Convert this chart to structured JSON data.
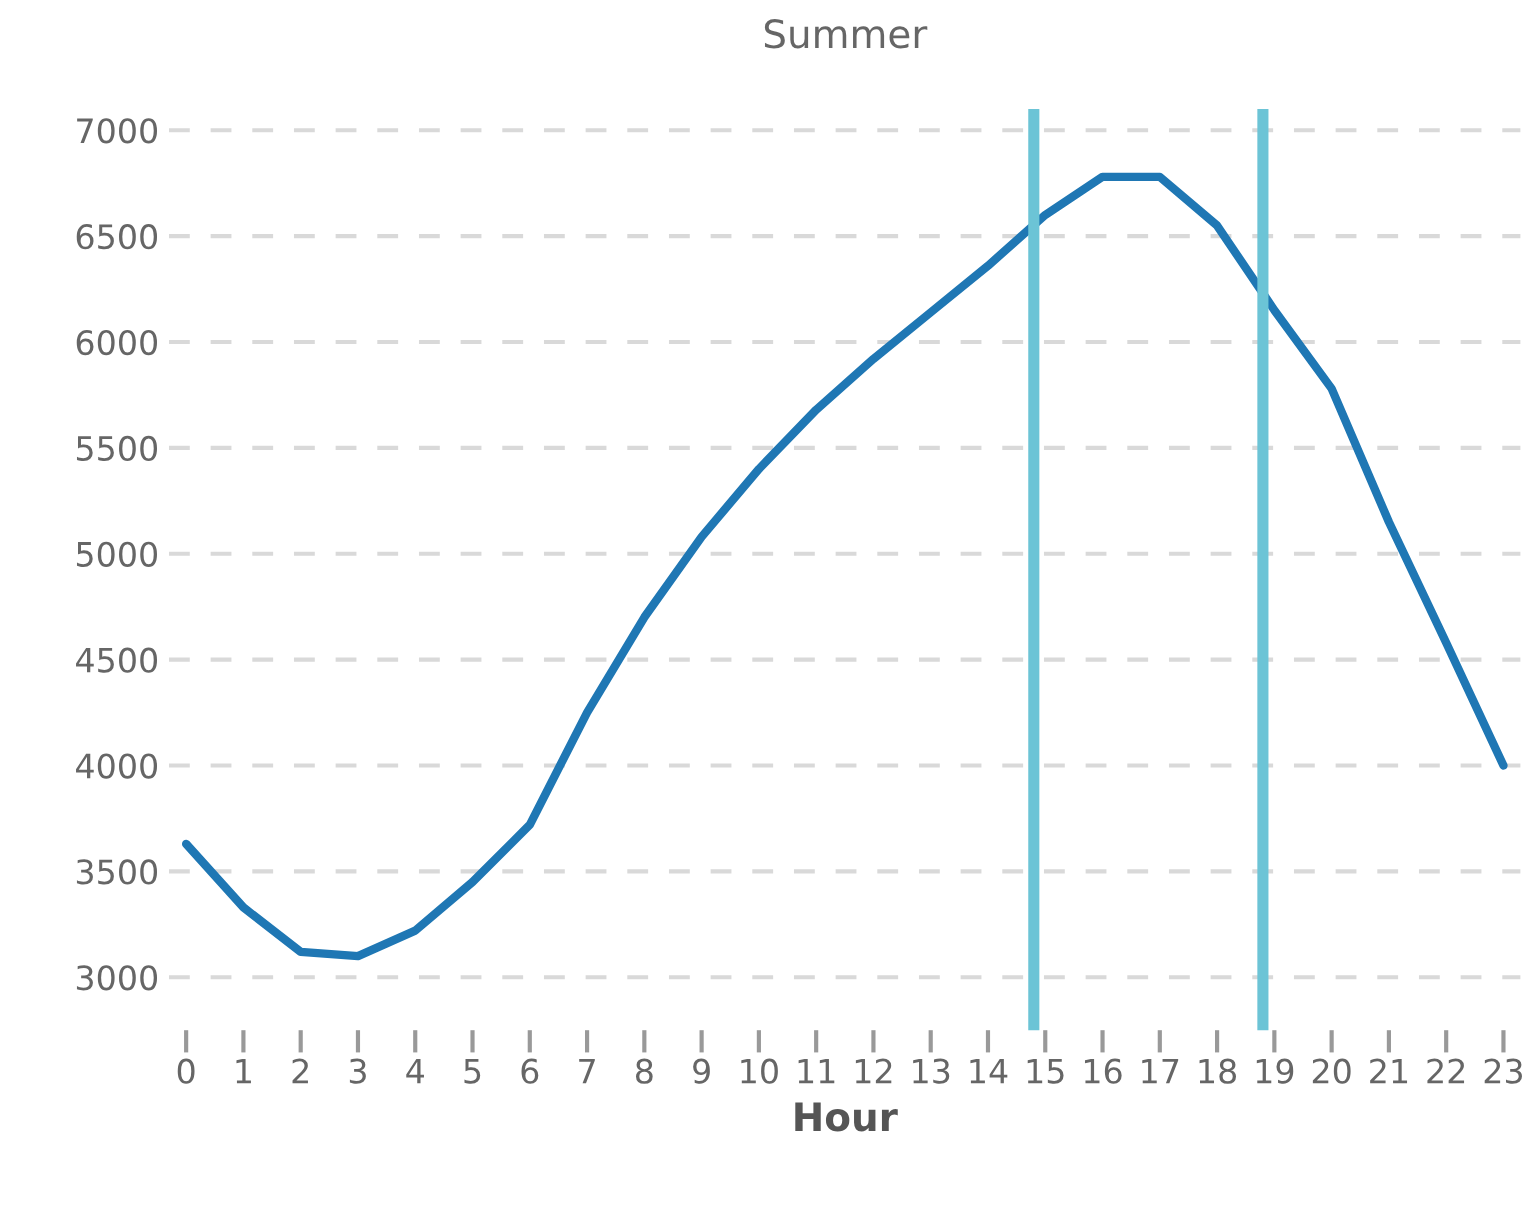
{
  "chart_data": {
    "type": "line",
    "title": "Summer",
    "xlabel": "Hour",
    "x": [
      0,
      1,
      2,
      3,
      4,
      5,
      6,
      7,
      8,
      9,
      10,
      11,
      12,
      13,
      14,
      15,
      16,
      17,
      18,
      19,
      20,
      21,
      22,
      23
    ],
    "series": [
      {
        "color": "#1f77b4",
        "values": [
          3630,
          3330,
          3120,
          3100,
          3220,
          3450,
          3720,
          4250,
          4700,
          5080,
          5400,
          5680,
          5920,
          6140,
          6360,
          6600,
          6780,
          6780,
          6550,
          6150,
          5780,
          5150,
          4580,
          4000
        ]
      }
    ],
    "xlim": [
      -0.3,
      23.3
    ],
    "xticks": [
      0,
      1,
      2,
      3,
      4,
      5,
      6,
      7,
      8,
      9,
      10,
      11,
      12,
      13,
      14,
      15,
      16,
      17,
      18,
      19,
      20,
      21,
      22,
      23
    ],
    "ylim": [
      2750,
      7100
    ],
    "yticks": [
      3000,
      3500,
      4000,
      4500,
      5000,
      5500,
      6000,
      6500,
      7000
    ],
    "grid": "y",
    "line_style": "solid",
    "marker": "none",
    "ref_lines": [
      {
        "axis": "x",
        "value": 14.8,
        "color": "#6cc4d6"
      },
      {
        "axis": "x",
        "value": 18.8,
        "color": "#6cc4d6"
      }
    ]
  }
}
